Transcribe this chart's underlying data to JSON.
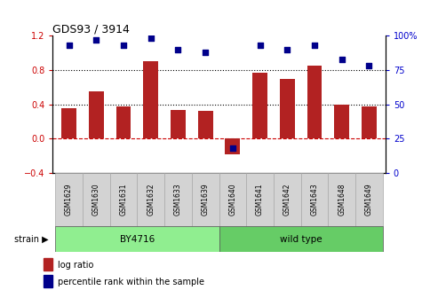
{
  "title": "GDS93 / 3914",
  "samples": [
    "GSM1629",
    "GSM1630",
    "GSM1631",
    "GSM1632",
    "GSM1633",
    "GSM1639",
    "GSM1640",
    "GSM1641",
    "GSM1642",
    "GSM1643",
    "GSM1648",
    "GSM1649"
  ],
  "log_ratio": [
    0.35,
    0.55,
    0.37,
    0.9,
    0.33,
    0.32,
    -0.18,
    0.77,
    0.7,
    0.85,
    0.4,
    0.37
  ],
  "percentile": [
    93,
    97,
    93,
    98,
    90,
    88,
    18,
    93,
    90,
    93,
    83,
    78
  ],
  "bar_color": "#b22222",
  "dot_color": "#00008b",
  "ylim_left": [
    -0.4,
    1.2
  ],
  "ylim_right": [
    0,
    100
  ],
  "yticks_left": [
    -0.4,
    0.0,
    0.4,
    0.8,
    1.2
  ],
  "yticks_right": [
    0,
    25,
    50,
    75,
    100
  ],
  "hlines": [
    0.0,
    0.4,
    0.8
  ],
  "hline_colors": [
    "#cc0000",
    "#000000",
    "#000000"
  ],
  "hline_styles": [
    "dashed",
    "dotted",
    "dotted"
  ],
  "group1_label": "BY4716",
  "group2_label": "wild type",
  "group1_count": 6,
  "group2_count": 6,
  "strain_label": "strain",
  "legend_bar": "log ratio",
  "legend_dot": "percentile rank within the sample",
  "group1_color": "#90ee90",
  "group2_color": "#66cc66",
  "sample_box_color": "#d3d3d3",
  "sample_box_edge": "#aaaaaa",
  "tick_color_left": "#cc0000",
  "tick_color_right": "#0000cc",
  "bg_color": "#ffffff",
  "bar_width": 0.55,
  "dot_size": 22
}
